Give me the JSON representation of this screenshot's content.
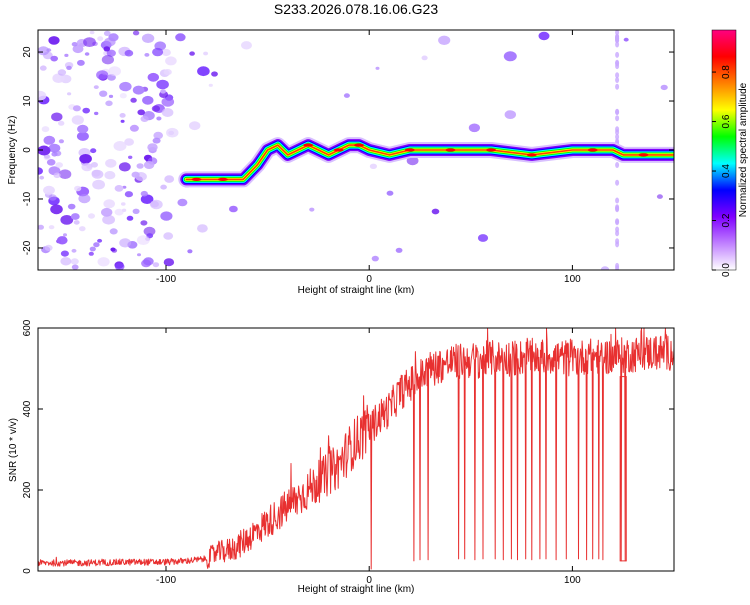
{
  "page_title": "S233.2026.078.16.06.G23",
  "chart_data": [
    {
      "type": "heatmap",
      "title": "S233.2026.078.16.06.G23",
      "xlabel": "Height of straight line (km)",
      "ylabel": "Frequency (Hz)",
      "xlim": [
        -163,
        150
      ],
      "ylim": [
        -24.5,
        24.5
      ],
      "xticks": [
        -100,
        0,
        100
      ],
      "yticks": [
        -20,
        -10,
        0,
        10,
        20
      ],
      "colorbar": {
        "label": "Normalized spectral amplitude",
        "ticks": [
          "0.0",
          "0.2",
          "0.4",
          "0.6",
          "0.8"
        ],
        "range": [
          0,
          0.97
        ],
        "colors": [
          "#ffffff",
          "#c080ff",
          "#8000ff",
          "#0000ff",
          "#00ffff",
          "#00ff00",
          "#ffff00",
          "#ff8000",
          "#ff0000",
          "#ff0080"
        ]
      },
      "ridge": {
        "x": [
          -90,
          -80,
          -70,
          -62,
          -55,
          -50,
          -45,
          -40,
          -30,
          -20,
          -10,
          -5,
          0,
          10,
          20,
          40,
          60,
          80,
          100,
          120,
          125,
          150
        ],
        "freq": [
          -6,
          -6,
          -6,
          -6,
          -3,
          0,
          1,
          -1,
          1,
          -1,
          1,
          1,
          0,
          -1,
          0,
          0,
          0,
          -1,
          0,
          0,
          -1,
          -1
        ]
      }
    },
    {
      "type": "line",
      "xlabel": "Height of straight line (km)",
      "ylabel": "SNR (10 * v/v)",
      "xlim": [
        -163,
        150
      ],
      "ylim": [
        0,
        600
      ],
      "xticks": [
        -100,
        0,
        100
      ],
      "yticks": [
        0,
        200,
        400,
        600
      ],
      "series": [
        {
          "name": "SNR",
          "color": "#e83030",
          "x": [
            -163,
            -140,
            -120,
            -100,
            -90,
            -80,
            -75,
            -70,
            -65,
            -60,
            -55,
            -50,
            -45,
            -40,
            -35,
            -30,
            -25,
            -20,
            -15,
            -10,
            -5,
            0,
            5,
            10,
            15,
            20,
            25,
            30,
            40,
            50,
            60,
            70,
            80,
            90,
            100,
            110,
            120,
            130,
            140,
            150
          ],
          "y": [
            20,
            20,
            22,
            22,
            25,
            30,
            45,
            50,
            60,
            80,
            100,
            120,
            140,
            160,
            180,
            200,
            220,
            240,
            260,
            300,
            330,
            350,
            380,
            400,
            440,
            460,
            480,
            500,
            515,
            520,
            525,
            525,
            530,
            530,
            525,
            530,
            530,
            535,
            540,
            540
          ],
          "dropouts_x": [
            1,
            22,
            25,
            29,
            44,
            47,
            52,
            56,
            62,
            66,
            70,
            73,
            77,
            80,
            84,
            87,
            92,
            97,
            103,
            107,
            110,
            113,
            115,
            124,
            126
          ],
          "dropout_floor": [
            5,
            25,
            28,
            28,
            30,
            30,
            28,
            30,
            30,
            28,
            30,
            28,
            30,
            28,
            30,
            30,
            28,
            30,
            30,
            28,
            30,
            30,
            28,
            25,
            25
          ]
        }
      ]
    }
  ]
}
